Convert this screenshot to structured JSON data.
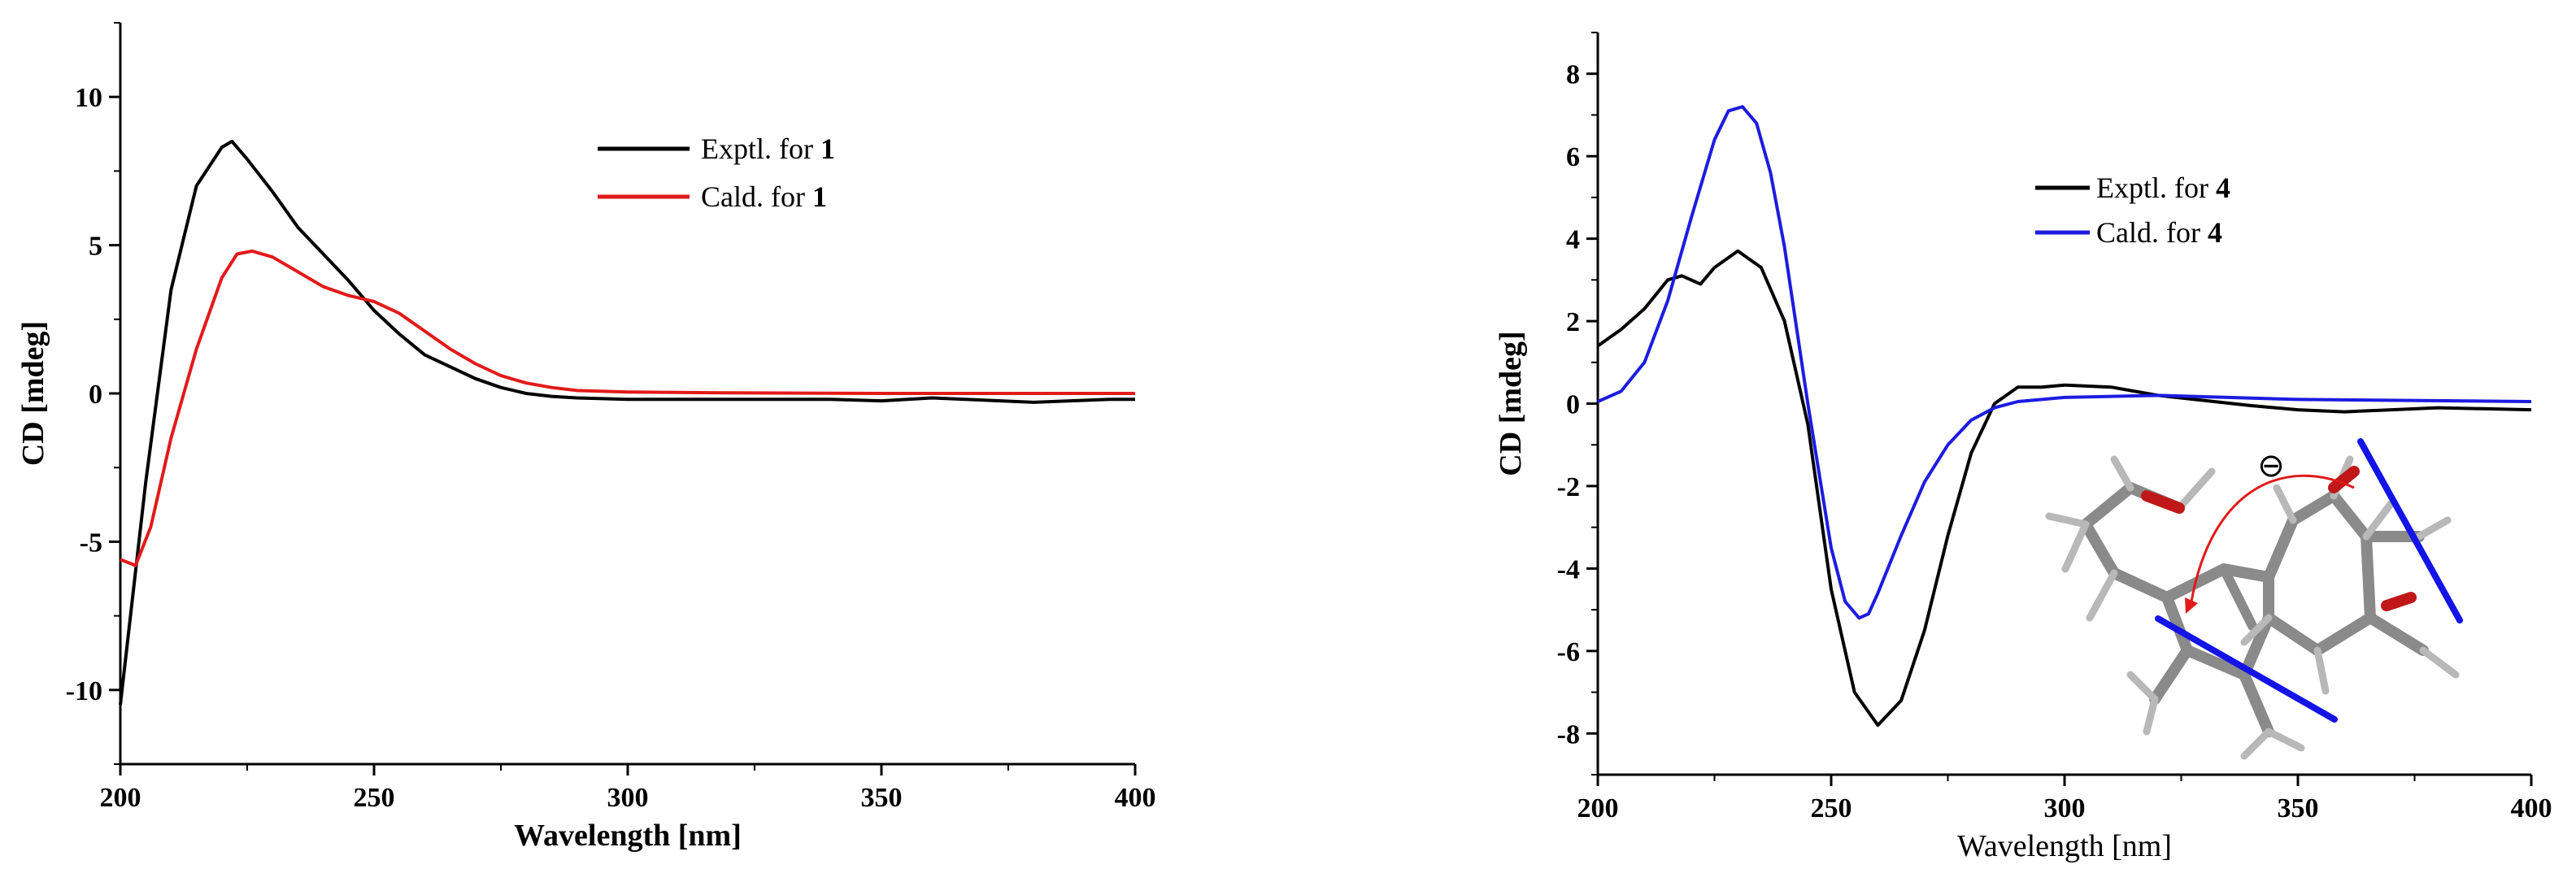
{
  "chart_data": [
    {
      "type": "line",
      "xlabel": "Wavelength [nm]",
      "ylabel": "CD [mdeg]",
      "xlim": [
        200,
        400
      ],
      "ylim": [
        -12.5,
        12.5
      ],
      "xticks": [
        "200",
        "250",
        "300",
        "350",
        "400"
      ],
      "yticks": [
        "10",
        "5",
        "0",
        "-5",
        "-10"
      ],
      "legend_position": "top-center",
      "series": [
        {
          "legend_text": "Exptl. for ",
          "legend_bold": "1",
          "color": "#000000",
          "x": [
            200,
            205,
            210,
            215,
            220,
            222,
            225,
            230,
            235,
            240,
            245,
            250,
            255,
            260,
            265,
            270,
            275,
            280,
            285,
            290,
            300,
            320,
            340,
            350,
            360,
            380,
            395,
            400
          ],
          "y": [
            -10.5,
            -3.0,
            3.5,
            7.0,
            8.3,
            8.5,
            7.9,
            6.8,
            5.6,
            4.7,
            3.8,
            2.8,
            2.0,
            1.3,
            0.9,
            0.5,
            0.2,
            0.0,
            -0.1,
            -0.15,
            -0.2,
            -0.2,
            -0.2,
            -0.25,
            -0.15,
            -0.3,
            -0.2,
            -0.2
          ]
        },
        {
          "legend_text": "Cald. for ",
          "legend_bold": "1",
          "color": "#e21a1a",
          "x": [
            200,
            203,
            206,
            210,
            215,
            220,
            223,
            226,
            230,
            235,
            240,
            245,
            250,
            255,
            260,
            265,
            270,
            275,
            280,
            285,
            290,
            300,
            320,
            350,
            400
          ],
          "y": [
            -5.6,
            -5.8,
            -4.5,
            -1.5,
            1.5,
            3.9,
            4.7,
            4.8,
            4.6,
            4.1,
            3.6,
            3.3,
            3.1,
            2.7,
            2.1,
            1.5,
            1.0,
            0.6,
            0.35,
            0.2,
            0.1,
            0.05,
            0.02,
            0.0,
            0.0
          ]
        }
      ]
    },
    {
      "type": "line",
      "xlabel": "Wavelength [nm]",
      "ylabel": "CD [mdeg]",
      "xlim": [
        200,
        400
      ],
      "ylim": [
        -9,
        9
      ],
      "xticks": [
        "200",
        "250",
        "300",
        "350",
        "400"
      ],
      "yticks": [
        "8",
        "6",
        "4",
        "2",
        "0",
        "-2",
        "-4",
        "-6",
        "-8"
      ],
      "legend_position": "upper-middle",
      "series": [
        {
          "legend_text": "Exptl. for ",
          "legend_bold": "4",
          "color": "#000000",
          "x": [
            200,
            205,
            210,
            215,
            218,
            222,
            225,
            230,
            235,
            240,
            245,
            250,
            255,
            260,
            265,
            270,
            275,
            280,
            285,
            290,
            295,
            300,
            310,
            320,
            340,
            350,
            360,
            380,
            400
          ],
          "y": [
            1.4,
            1.8,
            2.3,
            3.0,
            3.1,
            2.9,
            3.3,
            3.7,
            3.3,
            2.0,
            -0.5,
            -4.5,
            -7.0,
            -7.8,
            -7.2,
            -5.5,
            -3.2,
            -1.2,
            0.0,
            0.4,
            0.4,
            0.45,
            0.4,
            0.2,
            -0.05,
            -0.15,
            -0.2,
            -0.1,
            -0.15
          ]
        },
        {
          "legend_text": "Cald. for ",
          "legend_bold": "4",
          "color": "#1c1ce0",
          "x": [
            200,
            205,
            210,
            215,
            220,
            225,
            228,
            231,
            234,
            237,
            240,
            245,
            250,
            253,
            256,
            258,
            260,
            265,
            270,
            275,
            280,
            285,
            290,
            300,
            320,
            350,
            400
          ],
          "y": [
            0.05,
            0.3,
            1.0,
            2.5,
            4.5,
            6.4,
            7.1,
            7.2,
            6.8,
            5.6,
            3.8,
            0.0,
            -3.5,
            -4.8,
            -5.2,
            -5.1,
            -4.6,
            -3.2,
            -1.9,
            -1.0,
            -0.4,
            -0.1,
            0.05,
            0.15,
            0.2,
            0.1,
            0.05
          ]
        }
      ]
    }
  ],
  "annotation": {
    "charge_symbol": "⊖"
  }
}
